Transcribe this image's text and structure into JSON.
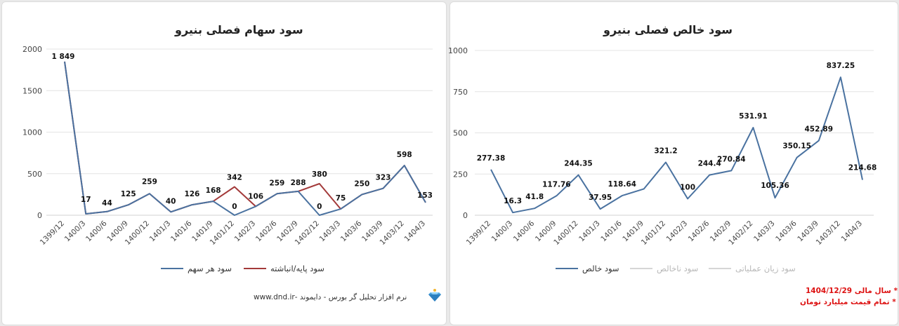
{
  "left": {
    "title": "سود سهام فصلی بنیرو",
    "footer": {
      "text": "نرم افزار تحلیل گر بورس - دایموند -www.dnd.ir",
      "logo_icon": "diamond-icon"
    },
    "legend": [
      {
        "label": "سود هر سهم",
        "color": "#4a72a0"
      },
      {
        "label": "سود پایه/انباشته",
        "color": "#a33a3a"
      }
    ]
  },
  "right": {
    "title": "سود خالص فصلی بنیرو",
    "legend": [
      {
        "label": "سود خالص",
        "color": "#4a72a0"
      },
      {
        "label": "سود ناخالص",
        "color": "#c8c8c8"
      },
      {
        "label": "سود زیان عملیاتی",
        "color": "#c8c8c8"
      }
    ],
    "notes": [
      "* سال مالی 1404/12/29",
      "* تمام قیمت میلیارد تومان"
    ]
  },
  "chart_data": [
    {
      "type": "line",
      "title": "سود سهام فصلی بنیرو",
      "categories": [
        "1399/12",
        "1400/3",
        "1400/6",
        "1400/9",
        "1400/12",
        "1401/3",
        "1401/6",
        "1401/9",
        "1401/12",
        "1402/3",
        "1402/6",
        "1402/9",
        "1402/12",
        "1403/3",
        "1403/6",
        "1403/9",
        "1403/12",
        "1404/3"
      ],
      "ylim": [
        0,
        2000
      ],
      "yticks": [
        0,
        500,
        1000,
        1500,
        2000
      ],
      "grid": true,
      "legend_position": "bottom",
      "series": [
        {
          "name": "سود هر سهم",
          "color": "#4a72a0",
          "values": [
            1849,
            17,
            44,
            125,
            259,
            40,
            126,
            168,
            0,
            106,
            259,
            288,
            0,
            75,
            250,
            323,
            598,
            153
          ]
        },
        {
          "name": "سود پایه/انباشته",
          "color": "#a33a3a",
          "values": [
            1849,
            17,
            44,
            125,
            259,
            40,
            126,
            168,
            342,
            106,
            259,
            288,
            380,
            75,
            250,
            323,
            598,
            153
          ]
        }
      ],
      "labels": [
        "1 849",
        "17",
        "44",
        "125",
        "259",
        "40",
        "126",
        "168",
        "342",
        "106",
        "259",
        "288",
        "380",
        "75",
        "250",
        "323",
        "598",
        "153"
      ],
      "extra_labels": [
        {
          "index": 8,
          "text": "0",
          "value": 0
        },
        {
          "index": 12,
          "text": "0",
          "value": 0
        }
      ]
    },
    {
      "type": "line",
      "title": "سود خالص فصلی بنیرو",
      "categories": [
        "1399/12",
        "1400/3",
        "1400/6",
        "1400/9",
        "1400/12",
        "1401/3",
        "1401/6",
        "1401/9",
        "1401/12",
        "1402/3",
        "1402/6",
        "1402/9",
        "1402/12",
        "1403/3",
        "1403/6",
        "1403/9",
        "1403/12",
        "1404/3"
      ],
      "ylim": [
        0,
        1000
      ],
      "yticks": [
        0,
        250,
        500,
        750,
        1000
      ],
      "grid": true,
      "legend_position": "bottom",
      "series": [
        {
          "name": "سود خالص",
          "color": "#4a72a0",
          "values": [
            277.38,
            16.3,
            41.8,
            117.76,
            244.35,
            37.95,
            118.64,
            160,
            321.2,
            100,
            244.4,
            270.84,
            531.91,
            105.36,
            350.15,
            452.89,
            837.25,
            214.68
          ]
        }
      ],
      "labels": [
        "277.38",
        "16.3",
        "41.8",
        "117.76",
        "244.35",
        "37.95",
        "118.64",
        "",
        "321.2",
        "100",
        "244.4",
        "270.84",
        "531.91",
        "105.36",
        "350.15",
        "452.89",
        "837.25",
        "214.68"
      ]
    }
  ]
}
